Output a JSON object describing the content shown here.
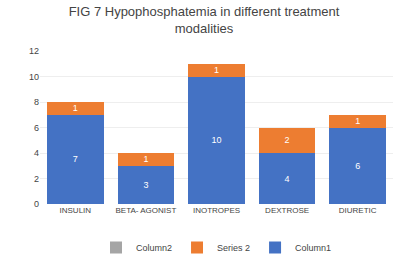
{
  "chart_data": {
    "type": "bar",
    "title": "FIG 7 Hypophosphatemia in different treatment\nmodalities",
    "categories": [
      "INSULIN",
      "BETA- AGONIST",
      "INOTROPES",
      "DEXTROSE",
      "DIURETIC"
    ],
    "series": [
      {
        "name": "Column1",
        "color": "#4472c4",
        "values": [
          7,
          3,
          10,
          4,
          6
        ],
        "data_labels": true
      },
      {
        "name": "Series 2",
        "color": "#ed7d31",
        "values": [
          1,
          1,
          1,
          2,
          1
        ],
        "data_labels": true
      },
      {
        "name": "Column2",
        "color": "#a5a5a5",
        "values": [
          0,
          0,
          0,
          0,
          0
        ]
      }
    ],
    "stacked": true,
    "ylim": [
      0,
      12
    ],
    "yticks": [
      0,
      2,
      4,
      6,
      8,
      10,
      12
    ],
    "grid": true,
    "legend": "bottom"
  }
}
